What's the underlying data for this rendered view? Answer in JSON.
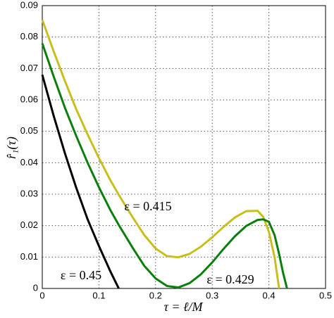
{
  "chart_data": {
    "type": "line",
    "xlabel": "τ = ℓ/M",
    "ylabel": "r̂₁(τ)",
    "x": [
      0,
      0.02,
      0.04,
      0.06,
      0.08,
      0.1,
      0.12,
      0.135,
      0.16,
      0.18,
      0.2,
      0.22,
      0.24,
      0.26,
      0.28,
      0.3,
      0.32,
      0.34,
      0.36,
      0.38,
      0.39,
      0.4,
      0.41,
      0.418,
      0.425,
      0.432
    ],
    "series": [
      {
        "color": "#c8bf1e",
        "values": [
          0.0855,
          0.0755,
          0.066,
          0.057,
          0.049,
          0.0415,
          0.0345,
          0.0298,
          0.0225,
          0.017,
          0.0127,
          0.0103,
          0.0099,
          0.011,
          0.0133,
          0.0163,
          0.0196,
          0.0226,
          0.0246,
          0.0247,
          0.0228,
          0.018,
          0.01,
          0,
          null,
          null
        ]
      },
      {
        "color": "#0b7f0b",
        "values": [
          0.078,
          0.0675,
          0.0575,
          0.0485,
          0.04,
          0.0322,
          0.025,
          0.0202,
          0.0128,
          0.0072,
          0.0032,
          0.0008,
          0.0003,
          0.0017,
          0.0045,
          0.0083,
          0.0126,
          0.0166,
          0.0199,
          0.0218,
          0.022,
          0.0212,
          0.017,
          0.011,
          0.005,
          0
        ]
      },
      {
        "color": "#000000",
        "values": [
          0.068,
          0.055,
          0.043,
          0.032,
          0.022,
          0.0135,
          0.0055,
          0,
          null,
          null,
          null,
          null,
          null,
          null,
          null,
          null,
          null,
          null,
          null,
          null,
          null,
          null,
          null,
          null,
          null,
          null
        ]
      }
    ],
    "annotations": [
      "ε = 0.415",
      "ε = 0.45",
      "ε = 0.429"
    ],
    "xlim": [
      0,
      0.5
    ],
    "xticks": [
      0,
      0.1,
      0.2,
      0.3,
      0.4,
      0.5
    ],
    "ylim": [
      0,
      0.09
    ],
    "yticks": [
      0,
      0.01,
      0.02,
      0.03,
      0.04,
      0.05,
      0.06,
      0.07,
      0.08,
      0.09
    ],
    "grid": true
  }
}
